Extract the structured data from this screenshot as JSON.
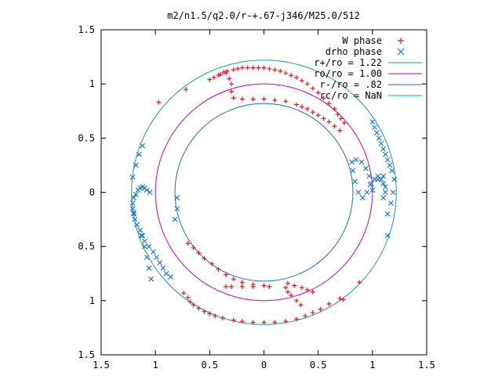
{
  "chart_data": {
    "type": "scatter",
    "title": "m2/n1.5/q2.0/r-+.67-j346/M25.0/512",
    "xlabel": "",
    "ylabel": "",
    "xlim": [
      -1.5,
      1.5
    ],
    "ylim": [
      -1.5,
      1.5
    ],
    "x_ticks": [
      "1.5",
      "1",
      "0.5",
      "0",
      "0.5",
      "1",
      "1.5"
    ],
    "y_ticks": [
      "1.5",
      "1",
      "0.5",
      "0",
      "0.5",
      "1",
      "1.5"
    ],
    "grid": false,
    "legend_position": "top-right",
    "colors": {
      "w_phase": "#e41a1c",
      "drho_phase": "#1f78d1",
      "r_plus": "#1a8fd0",
      "r_o": "#c000c0",
      "r_minus": "#1a6fd0",
      "r_c": "#00b0c0",
      "axis": "#000000"
    },
    "legend": [
      {
        "label": "W phase",
        "marker": "+"
      },
      {
        "label": "drho phase",
        "marker": "x"
      },
      {
        "label": "r+/ro = 1.22",
        "marker": "line"
      },
      {
        "label": "ro/ro = 1.00",
        "marker": "line"
      },
      {
        "label": "r-/ro = .82",
        "marker": "line"
      },
      {
        "label": "rc/ro = NaN",
        "marker": "line"
      }
    ],
    "circles": [
      {
        "name": "r+/ro = 1.22",
        "radius": 1.22
      },
      {
        "name": "ro/ro = 1.00",
        "radius": 1.0
      },
      {
        "name": "r-/ro = .82",
        "radius": 0.82
      }
    ],
    "series": [
      {
        "name": "W phase",
        "x": [
          -0.97,
          -0.72,
          -0.5,
          -0.46,
          -0.42,
          -0.4,
          -0.37,
          -0.34,
          -0.28,
          -0.24,
          -0.2,
          -0.15,
          -0.1,
          -0.05,
          0.0,
          0.05,
          0.1,
          0.15,
          0.2,
          0.25,
          0.3,
          0.35,
          0.4,
          0.45,
          0.5,
          0.55,
          0.6,
          0.65,
          0.68,
          0.71,
          0.74,
          -0.35,
          -0.32,
          -0.3,
          -0.3,
          -0.28,
          -0.2,
          -0.1,
          0.0,
          0.1,
          0.2,
          0.3,
          0.35,
          0.4,
          0.45,
          0.5,
          0.55,
          0.6,
          0.65,
          0.7,
          0.05,
          -0.1,
          -0.2,
          -0.3,
          -0.35,
          0.34,
          0.3,
          0.25,
          0.22,
          0.2,
          0.22,
          0.28,
          0.35,
          0.4,
          0.45,
          0.0,
          -0.1,
          -0.2,
          -0.28,
          -0.35,
          -0.42,
          -0.48,
          -0.55,
          -0.6,
          -0.65,
          -0.7,
          -0.74,
          -0.7,
          -0.68,
          -0.65,
          -0.6,
          -0.55,
          -0.5,
          -0.45,
          -0.38,
          -0.28,
          -0.2,
          -0.1,
          0.0,
          0.1,
          0.2,
          0.3,
          0.38,
          0.45,
          0.52,
          0.6,
          0.7,
          0.88,
          0.73
        ],
        "y": [
          0.83,
          0.95,
          1.04,
          1.06,
          1.08,
          1.09,
          1.11,
          1.12,
          1.13,
          1.14,
          1.15,
          1.15,
          1.15,
          1.15,
          1.15,
          1.14,
          1.13,
          1.12,
          1.1,
          1.08,
          1.06,
          1.03,
          1.0,
          0.96,
          0.92,
          0.87,
          0.82,
          0.77,
          0.72,
          0.68,
          0.64,
          1.1,
          1.05,
          1.0,
          0.93,
          0.87,
          0.86,
          0.86,
          0.86,
          0.85,
          0.84,
          0.81,
          0.79,
          0.77,
          0.74,
          0.71,
          0.68,
          0.65,
          0.61,
          0.57,
          -0.87,
          -0.87,
          -0.87,
          -0.87,
          -0.87,
          -1.04,
          -1.0,
          -0.95,
          -0.92,
          -0.88,
          -0.84,
          -0.86,
          -0.88,
          -0.9,
          -0.92,
          -0.86,
          -0.85,
          -0.83,
          -0.8,
          -0.76,
          -0.71,
          -0.66,
          -0.61,
          -0.56,
          -0.51,
          -0.47,
          -0.93,
          -0.97,
          -1.01,
          -1.04,
          -1.07,
          -1.1,
          -1.12,
          -1.14,
          -1.16,
          -1.18,
          -1.19,
          -1.2,
          -1.2,
          -1.2,
          -1.19,
          -1.17,
          -1.14,
          -1.11,
          -1.08,
          -1.03,
          -0.98,
          -0.83,
          -0.99
        ]
      },
      {
        "name": "drho phase",
        "x": [
          1.0,
          1.02,
          1.04,
          1.06,
          1.08,
          1.1,
          1.12,
          1.14,
          1.16,
          1.18,
          1.2,
          1.19,
          1.17,
          1.14,
          1.12,
          1.1,
          1.08,
          1.05,
          1.02,
          0.98,
          0.95,
          0.91,
          0.87,
          0.84,
          0.82,
          0.81,
          0.85,
          0.9,
          0.94,
          0.97,
          0.99,
          1.0,
          1.05,
          1.1,
          1.12,
          1.1,
          1.14,
          -1.05,
          -1.08,
          -1.1,
          -1.12,
          -1.14,
          -1.16,
          -1.18,
          -1.2,
          -1.21,
          -1.21,
          -1.2,
          -1.19,
          -1.17,
          -1.14,
          -1.12,
          -1.1,
          -1.06,
          -1.02,
          -0.99,
          -0.96,
          -0.93,
          -0.9,
          -0.86,
          -0.82,
          -0.8,
          -0.8,
          -1.12,
          -1.15,
          -1.18,
          -1.21,
          -1.2,
          -1.17,
          -1.13,
          -1.1,
          -1.08,
          -1.06,
          -1.04
        ],
        "y": [
          0.65,
          0.6,
          0.55,
          0.5,
          0.45,
          0.4,
          0.35,
          0.3,
          0.25,
          0.2,
          0.12,
          0.0,
          -0.1,
          -0.2,
          0.05,
          0.08,
          0.12,
          0.15,
          0.12,
          0.07,
          0.0,
          -0.05,
          0.0,
          0.1,
          0.2,
          0.28,
          0.3,
          0.28,
          0.22,
          0.15,
          0.08,
          0.02,
          0.12,
          0.15,
          0.0,
          -0.05,
          -0.4,
          0.0,
          0.02,
          0.04,
          0.05,
          0.04,
          0.02,
          -0.02,
          -0.05,
          -0.1,
          -0.15,
          -0.2,
          -0.25,
          -0.3,
          -0.35,
          -0.4,
          -0.45,
          -0.5,
          -0.55,
          -0.6,
          -0.65,
          -0.7,
          -0.75,
          -0.78,
          -0.25,
          -0.15,
          -0.05,
          0.43,
          0.35,
          0.25,
          0.14,
          -0.19,
          -0.3,
          -0.4,
          -0.5,
          -0.6,
          -0.7,
          -0.8
        ]
      }
    ]
  }
}
